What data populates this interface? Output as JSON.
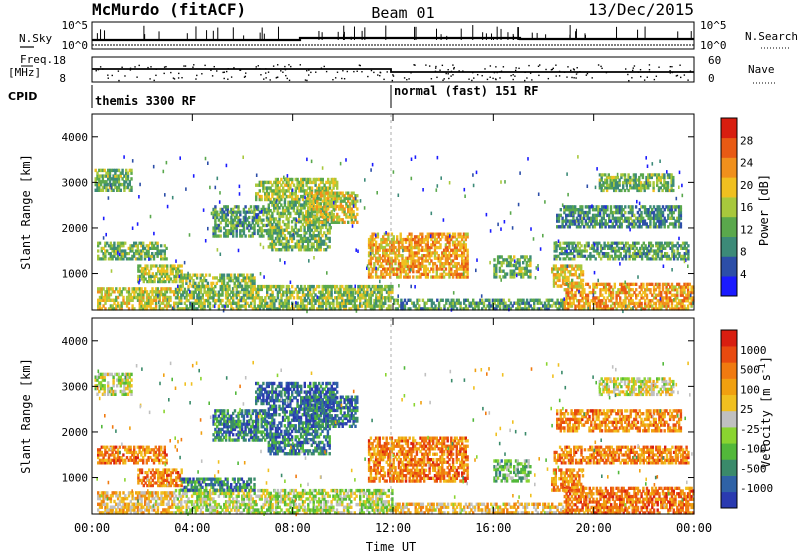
{
  "header": {
    "station": "McMurdo (fitACF)",
    "beam": "Beam 01",
    "date": "13/Dec/2015"
  },
  "top_panels": {
    "nsky_label": "N.Sky",
    "nsearch_label": "N.Search",
    "freq_label_line1": "Freq.",
    "freq_label_line2": "[MHz]",
    "nave_label": "Nave",
    "cpid_label": "CPID",
    "left_ticks_top": [
      "10^5",
      "10^0"
    ],
    "right_ticks_top": [
      "10^5",
      "10^0"
    ],
    "left_ticks_freq": [
      "18",
      "8"
    ],
    "right_ticks_nave": [
      "60",
      "0"
    ],
    "cpid_segments": [
      {
        "label": "themis 3300 RF",
        "start_hour": 0
      },
      {
        "label": "normal (fast) 151 RF",
        "start_hour": 12
      }
    ]
  },
  "chart_data": [
    {
      "type": "heatmap",
      "name": "power-panel",
      "ylabel": "Slant Range [km]",
      "ylim": [
        200,
        4500
      ],
      "yticks": [
        1000,
        2000,
        3000,
        4000
      ],
      "xlim": [
        "00:00",
        "24:00"
      ],
      "colorbar_label": "Power [dB]",
      "colorbar_ticks": [
        "4",
        "8",
        "12",
        "16",
        "20",
        "24",
        "28"
      ],
      "colorbar_colors": [
        "#1a1aff",
        "#2c4ea8",
        "#3c8a78",
        "#5aa84c",
        "#a8c83c",
        "#f0c020",
        "#f0901c",
        "#e85a14",
        "#d81e10"
      ],
      "regions": [
        {
          "t": [
            0.2,
            3.3
          ],
          "r": [
            200,
            700
          ],
          "level": 0.55
        },
        {
          "t": [
            3.3,
            12.0
          ],
          "r": [
            200,
            750
          ],
          "level": 0.45
        },
        {
          "t": [
            12.0,
            18.8
          ],
          "r": [
            200,
            450
          ],
          "level": 0.35
        },
        {
          "t": [
            18.8,
            24.0
          ],
          "r": [
            200,
            800
          ],
          "level": 0.7
        },
        {
          "t": [
            0.1,
            1.6
          ],
          "r": [
            2800,
            3300
          ],
          "level": 0.4
        },
        {
          "t": [
            0.2,
            3.0
          ],
          "r": [
            1300,
            1700
          ],
          "level": 0.4
        },
        {
          "t": [
            1.8,
            3.6
          ],
          "r": [
            800,
            1200
          ],
          "level": 0.5
        },
        {
          "t": [
            3.5,
            6.5
          ],
          "r": [
            700,
            1000
          ],
          "level": 0.45
        },
        {
          "t": [
            4.8,
            7.0
          ],
          "r": [
            1800,
            2500
          ],
          "level": 0.35
        },
        {
          "t": [
            6.5,
            9.8
          ],
          "r": [
            2600,
            3100
          ],
          "level": 0.5
        },
        {
          "t": [
            7.0,
            9.5
          ],
          "r": [
            1500,
            2600
          ],
          "level": 0.4
        },
        {
          "t": [
            8.5,
            10.6
          ],
          "r": [
            2100,
            2800
          ],
          "level": 0.55
        },
        {
          "t": [
            11.0,
            12.4
          ],
          "r": [
            900,
            1900
          ],
          "level": 0.65
        },
        {
          "t": [
            12.4,
            15.0
          ],
          "r": [
            900,
            1900
          ],
          "level": 0.7
        },
        {
          "t": [
            16.0,
            17.5
          ],
          "r": [
            900,
            1400
          ],
          "level": 0.4
        },
        {
          "t": [
            18.3,
            19.6
          ],
          "r": [
            700,
            1200
          ],
          "level": 0.6
        },
        {
          "t": [
            18.4,
            23.8
          ],
          "r": [
            1300,
            1700
          ],
          "level": 0.35
        },
        {
          "t": [
            20.2,
            23.2
          ],
          "r": [
            2800,
            3200
          ],
          "level": 0.4
        },
        {
          "t": [
            18.5,
            23.5
          ],
          "r": [
            2000,
            2500
          ],
          "level": 0.3
        }
      ]
    },
    {
      "type": "heatmap",
      "name": "velocity-panel",
      "ylabel": "Slant Range [km]",
      "xlabel": "Time UT",
      "ylim": [
        200,
        4500
      ],
      "yticks": [
        1000,
        2000,
        3000,
        4000
      ],
      "xlim": [
        "00:00",
        "24:00"
      ],
      "xticks": [
        "00:00",
        "04:00",
        "08:00",
        "12:00",
        "16:00",
        "20:00",
        "00:00"
      ],
      "colorbar_label": "Velocity [m s^-1]",
      "colorbar_ticks": [
        "1000",
        "500",
        "100",
        "25",
        "-25",
        "-100",
        "-500",
        "-1000"
      ],
      "colorbar_colors": [
        "#2a3ab0",
        "#2f62a6",
        "#3a8a6a",
        "#52b83a",
        "#8ad430",
        "#c0c0c0",
        "#f0c020",
        "#f0a010",
        "#f07a10",
        "#e84a10",
        "#d81e10"
      ],
      "regions": [
        {
          "t": [
            0.1,
            1.6
          ],
          "r": [
            2800,
            3300
          ],
          "level": 0.48
        },
        {
          "t": [
            0.2,
            3.3
          ],
          "r": [
            200,
            700
          ],
          "level": 0.62
        },
        {
          "t": [
            3.3,
            12.0
          ],
          "r": [
            200,
            750
          ],
          "level": 0.45
        },
        {
          "t": [
            12.0,
            18.8
          ],
          "r": [
            200,
            450
          ],
          "level": 0.62
        },
        {
          "t": [
            18.8,
            24.0
          ],
          "r": [
            200,
            800
          ],
          "level": 0.78
        },
        {
          "t": [
            0.2,
            3.0
          ],
          "r": [
            1300,
            1700
          ],
          "level": 0.75
        },
        {
          "t": [
            1.8,
            3.6
          ],
          "r": [
            800,
            1200
          ],
          "level": 0.74
        },
        {
          "t": [
            3.5,
            6.5
          ],
          "r": [
            700,
            1000
          ],
          "level": 0.2
        },
        {
          "t": [
            4.8,
            7.0
          ],
          "r": [
            1800,
            2500
          ],
          "level": 0.2
        },
        {
          "t": [
            6.5,
            9.8
          ],
          "r": [
            2600,
            3100
          ],
          "level": 0.15
        },
        {
          "t": [
            7.0,
            9.5
          ],
          "r": [
            1500,
            2600
          ],
          "level": 0.18
        },
        {
          "t": [
            8.5,
            10.6
          ],
          "r": [
            2100,
            2800
          ],
          "level": 0.16
        },
        {
          "t": [
            11.0,
            12.4
          ],
          "r": [
            900,
            1900
          ],
          "level": 0.74
        },
        {
          "t": [
            12.4,
            15.0
          ],
          "r": [
            900,
            1900
          ],
          "level": 0.77
        },
        {
          "t": [
            16.0,
            17.5
          ],
          "r": [
            900,
            1400
          ],
          "level": 0.35
        },
        {
          "t": [
            18.3,
            19.6
          ],
          "r": [
            700,
            1200
          ],
          "level": 0.72
        },
        {
          "t": [
            18.4,
            23.8
          ],
          "r": [
            1300,
            1700
          ],
          "level": 0.76
        },
        {
          "t": [
            20.2,
            23.2
          ],
          "r": [
            2800,
            3200
          ],
          "level": 0.5
        },
        {
          "t": [
            18.5,
            23.5
          ],
          "r": [
            2000,
            2500
          ],
          "level": 0.74
        }
      ]
    }
  ]
}
